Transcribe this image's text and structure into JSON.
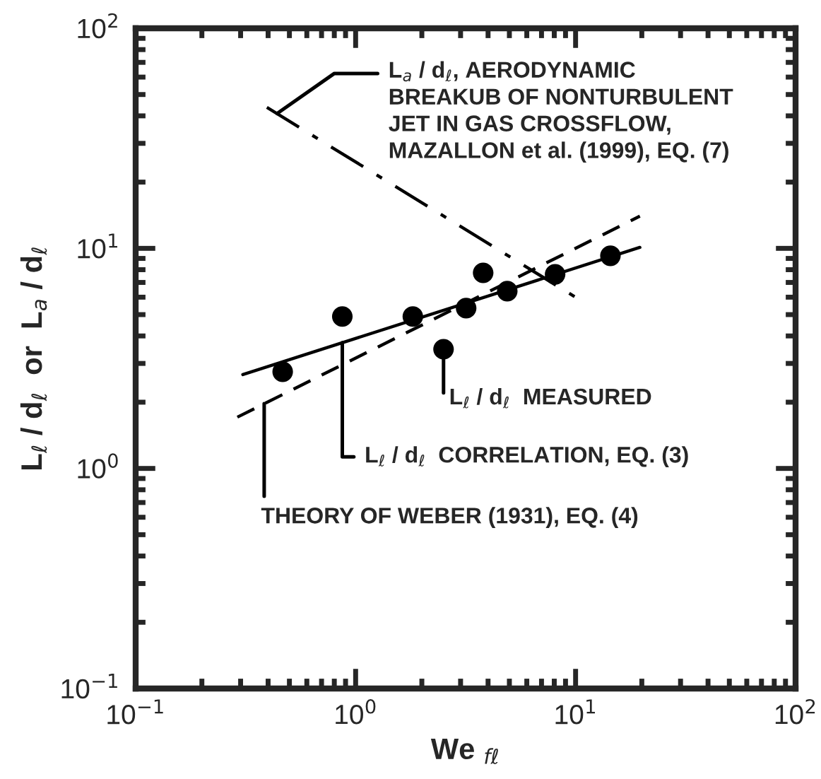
{
  "chart_data": {
    "type": "scatter",
    "xlabel": "We $_{fℓ}$",
    "ylabel": "L$_{ℓ}$ / d$_{ℓ}$  or  L$_{a}$ / d$_{ℓ}$",
    "log": "xy",
    "grid": false,
    "xlim": [
      0.1,
      100
    ],
    "ylim": [
      0.1,
      100
    ],
    "xticks": [
      {
        "value": 0.1,
        "label": "10$^{−1}$"
      },
      {
        "value": 1,
        "label": "10$^{0}$"
      },
      {
        "value": 10,
        "label": "10$^{1}$"
      },
      {
        "value": 100,
        "label": "10$^{2}$"
      }
    ],
    "yticks": [
      {
        "value": 0.1,
        "label": "10$^{−1}$"
      },
      {
        "value": 1,
        "label": "10$^{0}$"
      },
      {
        "value": 10,
        "label": "10$^{1}$"
      },
      {
        "value": 100,
        "label": "10$^{2}$"
      }
    ],
    "series": [
      {
        "color": "#000000",
        "marker": "circle",
        "x": [
          0.466,
          0.87,
          1.82,
          2.51,
          3.18,
          3.8,
          4.89,
          8.07,
          14.4
        ],
        "values": [
          2.75,
          4.9,
          4.9,
          3.48,
          5.35,
          7.74,
          6.39,
          7.62,
          9.25
        ]
      },
      {
        "type": "line",
        "color": "#000000",
        "line_style": "solid",
        "x": [
          0.307,
          19.6
        ],
        "values": [
          2.67,
          10.1
        ]
      },
      {
        "type": "line",
        "color": "#000000",
        "line_style": "dashed",
        "x": [
          0.29,
          19.6
        ],
        "values": [
          1.71,
          14.0
        ]
      },
      {
        "type": "line",
        "color": "#000000",
        "line_style": "dashdot",
        "x": [
          0.395,
          9.94
        ],
        "values": [
          43.7,
          6.02
        ]
      }
    ],
    "annotations": [
      {
        "text": "L$_{a}$ / d$_{ℓ}$, AERODYNAMIC\nBREAKUB OF NONTURBULENT\nJET IN GAS CROSSFLOW,\nMAZALLON et al. (1999), EQ. (7)",
        "x": 0.44,
        "y": 41
      },
      {
        "text": "L$_{ℓ}$ / d$_{ℓ}$  MEASURED",
        "x": 2.51,
        "y": 3.48
      },
      {
        "text": "L$_{ℓ}$ / d$_{ℓ}$  CORRELATION, EQ. (3)",
        "x": 0.87,
        "y": 3.73
      },
      {
        "text": "THEORY OF WEBER (1931), EQ. (4)",
        "x": 0.384,
        "y": 1.97
      }
    ]
  }
}
